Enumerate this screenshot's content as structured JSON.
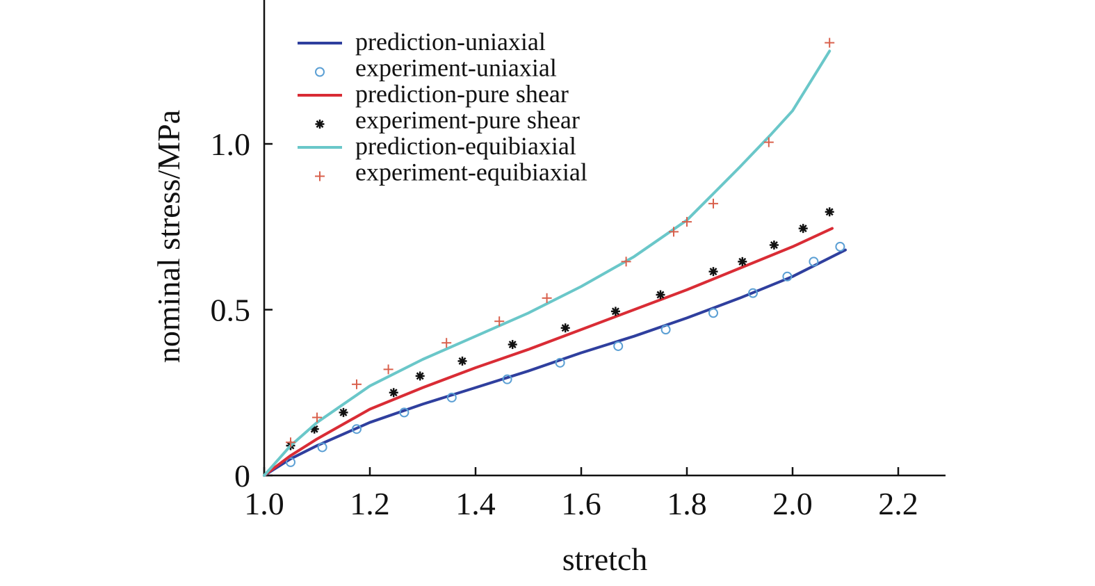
{
  "chart_data": {
    "type": "line",
    "title": "",
    "xlabel": "stretch",
    "ylabel": "nominal stress/MPa",
    "xlim": [
      1.0,
      2.3
    ],
    "ylim": [
      0,
      1.45
    ],
    "xticks": [
      {
        "value": 1.0,
        "label": "1.0"
      },
      {
        "value": 1.2,
        "label": "1.2"
      },
      {
        "value": 1.4,
        "label": "1.4"
      },
      {
        "value": 1.6,
        "label": "1.6"
      },
      {
        "value": 1.8,
        "label": "1.8"
      },
      {
        "value": 2.0,
        "label": "2.0"
      },
      {
        "value": 2.2,
        "label": "2.2"
      }
    ],
    "yticks": [
      {
        "value": 0,
        "label": "0"
      },
      {
        "value": 0.5,
        "label": "0.5"
      },
      {
        "value": 1.0,
        "label": "1.0"
      }
    ],
    "grid": false,
    "legend_position": "top-left",
    "series": [
      {
        "name": "prediction-uniaxial",
        "kind": "line",
        "color": "#2f3f9e",
        "x": [
          1.0,
          1.05,
          1.1,
          1.2,
          1.3,
          1.4,
          1.5,
          1.6,
          1.7,
          1.8,
          1.9,
          2.0,
          2.1
        ],
        "y": [
          0,
          0.05,
          0.09,
          0.16,
          0.215,
          0.265,
          0.315,
          0.37,
          0.42,
          0.475,
          0.535,
          0.6,
          0.68
        ]
      },
      {
        "name": "experiment-uniaxial",
        "kind": "marker",
        "marker": "circle",
        "color": "#5b9fd4",
        "x": [
          1.05,
          1.11,
          1.175,
          1.265,
          1.355,
          1.46,
          1.56,
          1.67,
          1.76,
          1.85,
          1.925,
          1.99,
          2.04,
          2.09
        ],
        "y": [
          0.04,
          0.085,
          0.14,
          0.19,
          0.235,
          0.29,
          0.34,
          0.39,
          0.44,
          0.49,
          0.55,
          0.6,
          0.645,
          0.69
        ]
      },
      {
        "name": "prediction-pure shear",
        "kind": "line",
        "color": "#d92c35",
        "x": [
          1.0,
          1.05,
          1.1,
          1.2,
          1.3,
          1.4,
          1.5,
          1.6,
          1.7,
          1.8,
          1.9,
          2.0,
          2.075
        ],
        "y": [
          0,
          0.06,
          0.11,
          0.2,
          0.265,
          0.325,
          0.38,
          0.44,
          0.5,
          0.56,
          0.625,
          0.69,
          0.745
        ]
      },
      {
        "name": "experiment-pure shear",
        "kind": "marker",
        "marker": "asterisk",
        "color": "#111111",
        "x": [
          1.05,
          1.095,
          1.15,
          1.245,
          1.295,
          1.375,
          1.47,
          1.57,
          1.665,
          1.75,
          1.85,
          1.905,
          1.965,
          2.02,
          2.07
        ],
        "y": [
          0.09,
          0.14,
          0.19,
          0.25,
          0.3,
          0.345,
          0.395,
          0.445,
          0.495,
          0.545,
          0.615,
          0.645,
          0.695,
          0.745,
          0.795
        ]
      },
      {
        "name": "prediction-equibiaxial",
        "kind": "line",
        "color": "#6ac7c9",
        "x": [
          1.0,
          1.05,
          1.1,
          1.2,
          1.3,
          1.4,
          1.5,
          1.6,
          1.7,
          1.8,
          1.85,
          1.9,
          1.96,
          2.0,
          2.07
        ],
        "y": [
          0,
          0.09,
          0.16,
          0.27,
          0.35,
          0.42,
          0.49,
          0.57,
          0.66,
          0.77,
          0.85,
          0.93,
          1.03,
          1.1,
          1.28
        ]
      },
      {
        "name": "experiment-equibiaxial",
        "kind": "marker",
        "marker": "plus",
        "color": "#d9604c",
        "x": [
          1.05,
          1.1,
          1.175,
          1.235,
          1.345,
          1.445,
          1.535,
          1.685,
          1.775,
          1.8,
          1.85,
          1.955,
          2.07
        ],
        "y": [
          0.1,
          0.175,
          0.275,
          0.32,
          0.4,
          0.465,
          0.535,
          0.645,
          0.735,
          0.765,
          0.82,
          1.005,
          1.305
        ]
      }
    ]
  }
}
